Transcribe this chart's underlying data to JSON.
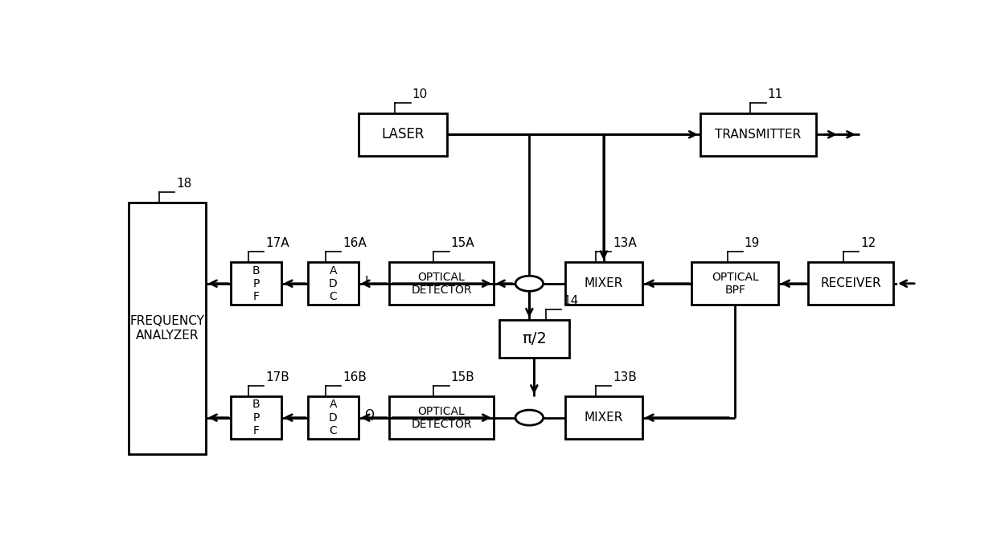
{
  "bg": "#ffffff",
  "blocks": {
    "LASER": [
      0.36,
      0.84,
      0.115,
      0.1
    ],
    "TRANSMITTER": [
      0.82,
      0.84,
      0.15,
      0.1
    ],
    "RECEIVER": [
      0.94,
      0.49,
      0.11,
      0.1
    ],
    "OPTICAL_BPF": [
      0.79,
      0.49,
      0.112,
      0.1
    ],
    "MIXER_A": [
      0.62,
      0.49,
      0.1,
      0.1
    ],
    "OPT_DET_A": [
      0.41,
      0.49,
      0.135,
      0.1
    ],
    "ADC_A": [
      0.27,
      0.49,
      0.065,
      0.1
    ],
    "BPF_A": [
      0.17,
      0.49,
      0.065,
      0.1
    ],
    "FREQ_AN": [
      0.055,
      0.385,
      0.1,
      0.59
    ],
    "PI2": [
      0.53,
      0.36,
      0.09,
      0.09
    ],
    "MIXER_B": [
      0.62,
      0.175,
      0.1,
      0.1
    ],
    "OPT_DET_B": [
      0.41,
      0.175,
      0.135,
      0.1
    ],
    "ADC_B": [
      0.27,
      0.175,
      0.065,
      0.1
    ],
    "BPF_B": [
      0.17,
      0.175,
      0.065,
      0.1
    ]
  },
  "block_labels": {
    "LASER": [
      "LASER"
    ],
    "TRANSMITTER": [
      "TRANSMITTER"
    ],
    "RECEIVER": [
      "RECEIVER"
    ],
    "OPTICAL_BPF": [
      "OPTICAL",
      "BPF"
    ],
    "MIXER_A": [
      "MIXER"
    ],
    "OPT_DET_A": [
      "OPTICAL",
      "DETECTOR"
    ],
    "ADC_A": [
      "A",
      "D",
      "C"
    ],
    "BPF_A": [
      "B",
      "P",
      "F"
    ],
    "FREQ_AN": [
      "FREQUENCY",
      "ANALYZER"
    ],
    "PI2": [
      "π/2"
    ],
    "MIXER_B": [
      "MIXER"
    ],
    "OPT_DET_B": [
      "OPTICAL",
      "DETECTOR"
    ],
    "ADC_B": [
      "A",
      "D",
      "C"
    ],
    "BPF_B": [
      "B",
      "P",
      "F"
    ]
  },
  "block_fontsizes": {
    "LASER": 12,
    "TRANSMITTER": 11,
    "RECEIVER": 11,
    "OPTICAL_BPF": 10,
    "MIXER_A": 11,
    "OPT_DET_A": 10,
    "ADC_A": 10,
    "BPF_A": 10,
    "FREQ_AN": 11,
    "PI2": 14,
    "MIXER_B": 11,
    "OPT_DET_B": 10,
    "ADC_B": 10,
    "BPF_B": 10
  },
  "ref_labels": [
    {
      "text": "10",
      "bx": 0.36,
      "by": 0.84,
      "bh": 0.1,
      "side": "top_left"
    },
    {
      "text": "11",
      "bx": 0.82,
      "by": 0.84,
      "bh": 0.1,
      "side": "top_left"
    },
    {
      "text": "12",
      "bx": 0.94,
      "by": 0.49,
      "bh": 0.1,
      "side": "top_left"
    },
    {
      "text": "19",
      "bx": 0.79,
      "by": 0.49,
      "bh": 0.1,
      "side": "top_left"
    },
    {
      "text": "13A",
      "bx": 0.62,
      "by": 0.49,
      "bh": 0.1,
      "side": "top_left"
    },
    {
      "text": "15A",
      "bx": 0.41,
      "by": 0.49,
      "bh": 0.1,
      "side": "top_left"
    },
    {
      "text": "16A",
      "bx": 0.27,
      "by": 0.49,
      "bh": 0.1,
      "side": "top_left"
    },
    {
      "text": "17A",
      "bx": 0.17,
      "by": 0.49,
      "bh": 0.1,
      "side": "top_left"
    },
    {
      "text": "18",
      "bx": 0.055,
      "by": 0.385,
      "bh": 0.59,
      "side": "top_left"
    },
    {
      "text": "14",
      "bx": 0.53,
      "by": 0.36,
      "bh": 0.09,
      "side": "top_right"
    },
    {
      "text": "13B",
      "bx": 0.62,
      "by": 0.175,
      "bh": 0.1,
      "side": "top_left"
    },
    {
      "text": "15B",
      "bx": 0.41,
      "by": 0.175,
      "bh": 0.1,
      "side": "top_left"
    },
    {
      "text": "16B",
      "bx": 0.27,
      "by": 0.175,
      "bh": 0.1,
      "side": "top_left"
    },
    {
      "text": "17B",
      "bx": 0.17,
      "by": 0.175,
      "bh": 0.1,
      "side": "top_left"
    }
  ]
}
